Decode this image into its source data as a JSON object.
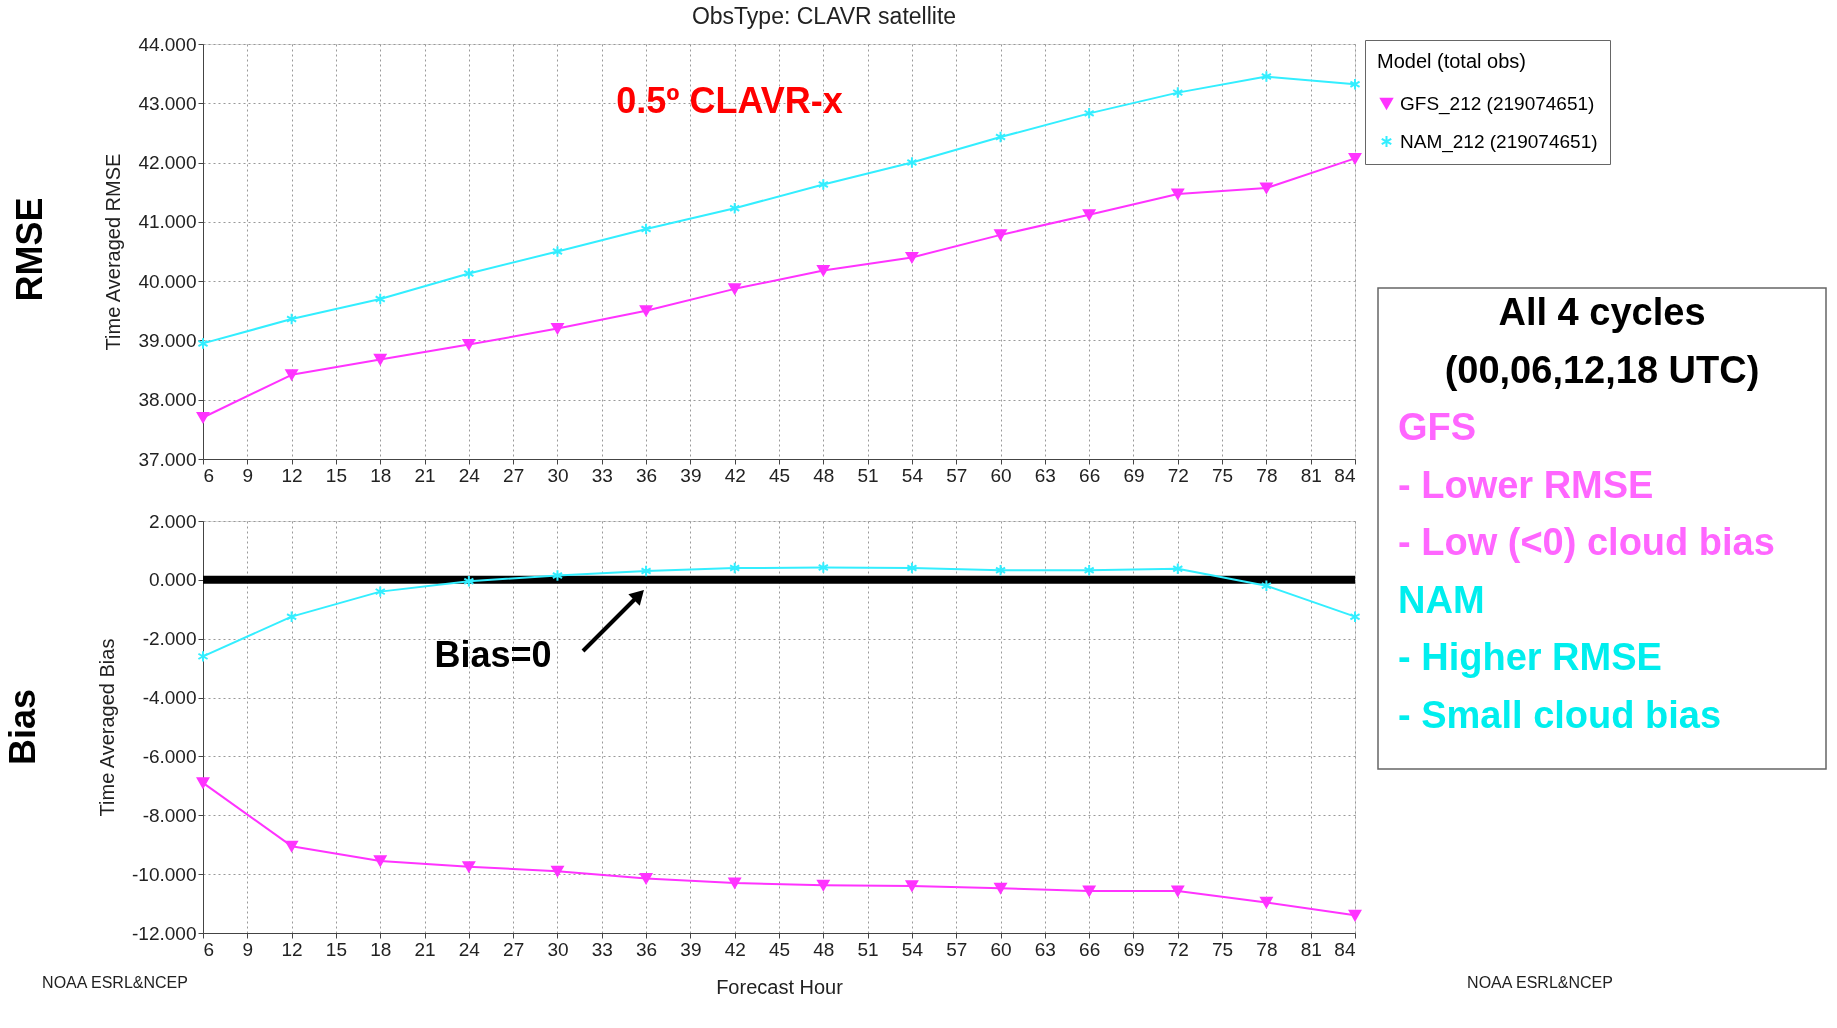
{
  "chart_data": [
    {
      "type": "line",
      "title": "ObsType: CLAVR satellite",
      "ylabel": "Time Averaged RMSE",
      "legend_title": "Model  (total obs)",
      "legend": "right",
      "grid": true,
      "x": [
        6,
        12,
        18,
        24,
        30,
        36,
        42,
        48,
        54,
        60,
        66,
        72,
        78,
        84
      ],
      "series": [
        {
          "name": "GFS_212 (219074651)",
          "color": "#ff33ff",
          "marker": "triangle",
          "values": [
            37.7,
            38.42,
            38.68,
            38.93,
            39.2,
            39.5,
            39.87,
            40.18,
            40.4,
            40.78,
            41.12,
            41.47,
            41.57,
            42.07
          ]
        },
        {
          "name": "NAM_212 (219074651)",
          "color": "#33eeff",
          "marker": "cross",
          "values": [
            38.95,
            39.36,
            39.7,
            40.13,
            40.5,
            40.88,
            41.23,
            41.63,
            42.0,
            42.43,
            42.83,
            43.18,
            43.45,
            43.32
          ]
        }
      ],
      "xlim": [
        6,
        84
      ],
      "xticks": [
        6,
        9,
        12,
        15,
        18,
        21,
        24,
        27,
        30,
        33,
        36,
        39,
        42,
        45,
        48,
        51,
        54,
        57,
        60,
        63,
        66,
        69,
        72,
        75,
        78,
        81,
        84
      ],
      "ylim": [
        37,
        44
      ],
      "yticks": [
        {
          "value": 37,
          "label": "37.000"
        },
        {
          "value": 38,
          "label": "38.000"
        },
        {
          "value": 39,
          "label": "39.000"
        },
        {
          "value": 40,
          "label": "40.000"
        },
        {
          "value": 41,
          "label": "41.000"
        },
        {
          "value": 42,
          "label": "42.000"
        },
        {
          "value": 43,
          "label": "43.000"
        },
        {
          "value": 44,
          "label": "44.000"
        }
      ],
      "annotations": [
        "0.5º CLAVR-x",
        "RMSE"
      ]
    },
    {
      "type": "line",
      "ylabel": "Time Averaged Bias",
      "xlabel": "Forecast Hour",
      "legend": false,
      "grid": true,
      "x": [
        6,
        12,
        18,
        24,
        30,
        36,
        42,
        48,
        54,
        60,
        66,
        72,
        78,
        84
      ],
      "series": [
        {
          "color": "#ff33ff",
          "marker": "triangle",
          "values": [
            -6.9,
            -9.05,
            -9.55,
            -9.75,
            -9.9,
            -10.15,
            -10.3,
            -10.38,
            -10.4,
            -10.48,
            -10.57,
            -10.57,
            -10.96,
            -11.4
          ]
        },
        {
          "color": "#33eeff",
          "marker": "cross",
          "values": [
            -2.6,
            -1.25,
            -0.4,
            -0.05,
            0.15,
            0.3,
            0.4,
            0.42,
            0.4,
            0.33,
            0.33,
            0.38,
            -0.2,
            -1.25
          ]
        }
      ],
      "xlim": [
        6,
        84
      ],
      "xticks": [
        6,
        9,
        12,
        15,
        18,
        21,
        24,
        27,
        30,
        33,
        36,
        39,
        42,
        45,
        48,
        51,
        54,
        57,
        60,
        63,
        66,
        69,
        72,
        75,
        78,
        81,
        84
      ],
      "ylim": [
        -12,
        2
      ],
      "yticks": [
        {
          "value": -12,
          "label": "-12.000"
        },
        {
          "value": -10,
          "label": "-10.000"
        },
        {
          "value": -8,
          "label": "-8.000"
        },
        {
          "value": -6,
          "label": "-6.000"
        },
        {
          "value": -4,
          "label": "-4.000"
        },
        {
          "value": -2,
          "label": "-2.000"
        },
        {
          "value": 0,
          "label": "0.000"
        },
        {
          "value": 2,
          "label": "2.000"
        }
      ],
      "ref_lines": [
        {
          "axis": "y",
          "value": 0,
          "color": "#000000"
        }
      ],
      "annotations": [
        "Bias",
        "Bias=0",
        "NOAA ESRL&NCEP",
        "NOAA ESRL&NCEP"
      ]
    },
    {
      "type": "other",
      "annotations": [
        "All 4 cycles",
        "(00,06,12,18 UTC)",
        "GFS",
        "- Lower RMSE",
        "- Low (<0) cloud bias",
        "NAM",
        "- Higher RMSE",
        "- Small cloud bias"
      ],
      "colors": [
        "#000000",
        "#000000",
        "#ff66ff",
        "#ff66ff",
        "#ff66ff",
        "#00eeee",
        "#00eeee",
        "#00eeee"
      ]
    }
  ]
}
